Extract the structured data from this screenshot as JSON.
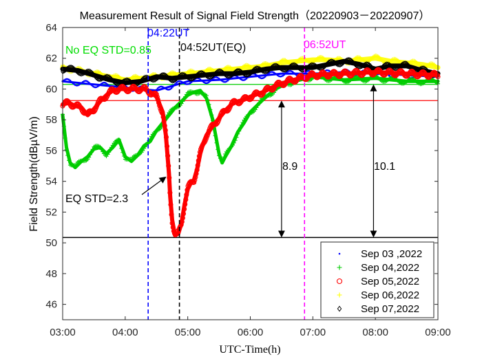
{
  "chart_data": {
    "type": "line",
    "title": "Measurement Result of Signal Field Strength（20220903－20220907）",
    "xlabel": "UTC-Time(h)",
    "ylabel": "Field Strength(dBµV/m)",
    "xlim": [
      3.0,
      9.0
    ],
    "ylim": [
      45,
      64
    ],
    "xticks": [
      3,
      4,
      5,
      6,
      7,
      8,
      9
    ],
    "xtick_labels": [
      "03:00",
      "04:00",
      "05:00",
      "06:00",
      "07:00",
      "08:00",
      "09:00"
    ],
    "yticks": [
      46,
      48,
      50,
      52,
      54,
      56,
      58,
      60,
      62,
      64
    ],
    "ytick_labels": [
      "46",
      "48",
      "50",
      "52",
      "54",
      "56",
      "58",
      "60",
      "62",
      "64"
    ],
    "grid": false,
    "legend_position": "bottom-right",
    "series": [
      {
        "name": "Sep 03 ,2022",
        "marker": ".",
        "color": "#0000ff",
        "x": [
          3.0,
          3.25,
          3.5,
          3.75,
          4.0,
          4.25,
          4.5,
          4.75,
          5.0,
          5.5,
          6.0,
          6.5,
          7.0,
          7.5,
          8.0,
          8.5,
          9.0
        ],
        "y": [
          60.5,
          60.4,
          60.3,
          60.2,
          60.1,
          60.0,
          59.9,
          60.2,
          60.5,
          60.6,
          60.8,
          61.0,
          61.0,
          61.1,
          61.0,
          60.9,
          60.8
        ]
      },
      {
        "name": "Sep 04,2022",
        "marker": "+",
        "color": "#00cc00",
        "x": [
          3.0,
          3.06,
          3.12,
          3.2,
          3.3,
          3.4,
          3.5,
          3.6,
          3.7,
          3.8,
          3.9,
          4.0,
          4.1,
          4.2,
          4.3,
          4.4,
          4.5,
          4.6,
          4.7,
          4.8,
          4.9,
          5.0,
          5.1,
          5.2,
          5.3,
          5.4,
          5.5,
          5.55,
          5.6,
          5.7,
          5.8,
          5.9,
          6.0,
          6.2,
          6.4,
          6.6,
          6.8,
          7.0,
          7.5,
          8.0,
          8.5,
          9.0
        ],
        "y": [
          58.3,
          56.2,
          55.2,
          54.9,
          55.3,
          55.6,
          56.1,
          56.2,
          55.8,
          56.2,
          56.7,
          55.6,
          55.3,
          55.7,
          56.3,
          56.6,
          57.3,
          57.8,
          58.3,
          58.8,
          59.2,
          59.6,
          59.8,
          59.9,
          59.4,
          58.0,
          55.8,
          55.2,
          55.6,
          56.3,
          57.2,
          57.8,
          58.5,
          59.3,
          60.0,
          60.4,
          60.6,
          60.8,
          60.6,
          60.7,
          60.5,
          60.5
        ]
      },
      {
        "name": "Sep 05,2022",
        "marker": "o",
        "color": "#ff0000",
        "x": [
          3.0,
          3.1,
          3.2,
          3.3,
          3.4,
          3.5,
          3.6,
          3.7,
          3.8,
          3.9,
          4.0,
          4.1,
          4.2,
          4.3,
          4.4,
          4.5,
          4.55,
          4.6,
          4.65,
          4.7,
          4.72,
          4.75,
          4.78,
          4.8,
          4.85,
          4.9,
          4.95,
          5.0,
          5.05,
          5.1,
          5.15,
          5.2,
          5.25,
          5.3,
          5.4,
          5.5,
          5.6,
          5.7,
          5.8,
          5.9,
          6.0,
          6.2,
          6.4,
          6.6,
          6.8,
          7.0,
          7.5,
          8.0,
          8.5,
          9.0
        ],
        "y": [
          59.0,
          59.1,
          58.9,
          58.8,
          58.3,
          58.7,
          59.2,
          59.6,
          59.9,
          60.0,
          60.0,
          60.0,
          60.0,
          60.0,
          59.8,
          59.5,
          59.0,
          58.5,
          57.0,
          54.5,
          53.0,
          51.5,
          50.8,
          50.5,
          50.6,
          51.3,
          52.5,
          53.5,
          53.9,
          54.1,
          54.8,
          55.8,
          56.5,
          57.0,
          57.6,
          58.1,
          58.6,
          59.0,
          59.2,
          59.3,
          59.5,
          59.8,
          60.2,
          60.5,
          60.7,
          60.9,
          61.0,
          61.1,
          61.0,
          60.9
        ]
      },
      {
        "name": "Sep 06,2022",
        "marker": "+",
        "color": "#ffff00",
        "x": [
          3.0,
          3.25,
          3.5,
          3.75,
          4.0,
          4.25,
          4.5,
          4.75,
          5.0,
          5.25,
          5.5,
          5.75,
          6.0,
          6.25,
          6.5,
          6.75,
          7.0,
          7.25,
          7.5,
          7.75,
          8.0,
          8.25,
          8.5,
          8.75,
          9.0
        ],
        "y": [
          61.4,
          61.2,
          61.0,
          60.8,
          60.6,
          60.7,
          60.8,
          60.9,
          61.0,
          61.1,
          61.2,
          61.3,
          61.4,
          61.5,
          61.7,
          61.8,
          61.9,
          61.9,
          61.8,
          61.9,
          62.0,
          61.8,
          61.7,
          61.6,
          61.4
        ]
      },
      {
        "name": "Sep 07,2022",
        "marker": "d",
        "color": "#000000",
        "x": [
          3.0,
          3.25,
          3.5,
          3.75,
          4.0,
          4.25,
          4.5,
          4.75,
          5.0,
          5.25,
          5.5,
          5.75,
          6.0,
          6.25,
          6.5,
          6.75,
          7.0,
          7.25,
          7.5,
          7.75,
          8.0,
          8.25,
          8.5,
          8.75,
          9.0
        ],
        "y": [
          61.3,
          61.2,
          60.9,
          60.6,
          60.4,
          60.5,
          60.8,
          60.7,
          60.8,
          60.9,
          61.0,
          61.0,
          61.1,
          61.3,
          61.4,
          61.4,
          61.4,
          61.6,
          61.8,
          61.6,
          61.3,
          61.5,
          61.5,
          61.2,
          61.0
        ]
      }
    ],
    "reference_lines": {
      "vertical": [
        {
          "x": 4.367,
          "label": "04:22UT",
          "color": "#0000ff"
        },
        {
          "x": 4.867,
          "label": "04:52UT(EQ)",
          "color": "#000000"
        },
        {
          "x": 6.867,
          "label": "06:52UT",
          "color": "#ff00ff"
        }
      ],
      "horizontal": [
        {
          "y": 60.3,
          "color": "#00cc00"
        },
        {
          "y": 59.25,
          "color": "#ff0000"
        },
        {
          "y": 50.35,
          "color": "#000000"
        }
      ]
    },
    "annotations": [
      {
        "text": "No EQ STD=0.85",
        "color": "#00dd00"
      },
      {
        "text": "EQ STD=2.3",
        "color": "#000000"
      },
      {
        "text": "8.9",
        "color": "#000000",
        "arrow_x": 6.5,
        "arrow_y": [
          59.25,
          50.35
        ]
      },
      {
        "text": "10.1",
        "color": "#000000",
        "arrow_x": 7.97,
        "arrow_y": [
          60.3,
          50.35
        ]
      }
    ]
  }
}
